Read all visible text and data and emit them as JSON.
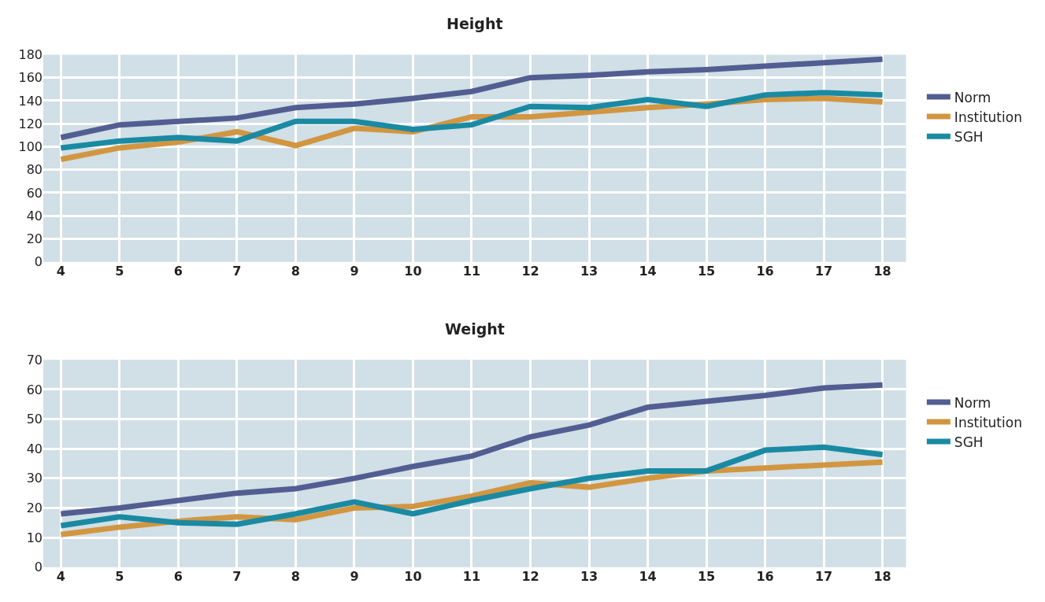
{
  "chart_data": [
    {
      "type": "line",
      "title": "Height",
      "categories": [
        "4",
        "5",
        "6",
        "7",
        "8",
        "9",
        "10",
        "11",
        "12",
        "13",
        "14",
        "15",
        "16",
        "17",
        "18"
      ],
      "ylim": [
        0,
        180
      ],
      "yticks": [
        0,
        20,
        40,
        60,
        80,
        100,
        120,
        140,
        160,
        180
      ],
      "grid": true,
      "legend": "right",
      "marker": "none",
      "line_style": "solid",
      "series": [
        {
          "name": "Norm",
          "color": "#525e92",
          "values": [
            108,
            119,
            122,
            125,
            134,
            137,
            142,
            148,
            160,
            162,
            165,
            167,
            170,
            173,
            176
          ]
        },
        {
          "name": "Institution",
          "color": "#d29641",
          "values": [
            89,
            99,
            104,
            113,
            101,
            116,
            113,
            126,
            126,
            130,
            134,
            137,
            141,
            142,
            139
          ]
        },
        {
          "name": "SGH",
          "color": "#1a8aa3",
          "values": [
            99,
            105,
            108,
            105,
            122,
            122,
            115,
            119,
            135,
            134,
            141,
            135,
            145,
            147,
            145
          ]
        }
      ]
    },
    {
      "type": "line",
      "title": "Weight",
      "categories": [
        "4",
        "5",
        "6",
        "7",
        "8",
        "9",
        "10",
        "11",
        "12",
        "13",
        "14",
        "15",
        "16",
        "17",
        "18"
      ],
      "ylim": [
        0,
        70
      ],
      "yticks": [
        0,
        10,
        20,
        30,
        40,
        50,
        60,
        70
      ],
      "grid": true,
      "legend": "right",
      "marker": "none",
      "line_style": "solid",
      "series": [
        {
          "name": "Norm",
          "color": "#525e92",
          "values": [
            18,
            20,
            22.5,
            25,
            26.5,
            30,
            34,
            37.5,
            44,
            48,
            54,
            56,
            58,
            60.5,
            61.5
          ]
        },
        {
          "name": "Institution",
          "color": "#d29641",
          "values": [
            11,
            13.5,
            15.5,
            17,
            16,
            20,
            20.5,
            24,
            28.5,
            27,
            30,
            32.5,
            33.5,
            34.5,
            35.5
          ]
        },
        {
          "name": "SGH",
          "color": "#1a8aa3",
          "values": [
            14,
            17,
            15,
            14.5,
            18,
            22,
            18,
            22.5,
            26.5,
            30,
            32.5,
            32.5,
            39.5,
            40.5,
            38
          ]
        }
      ]
    }
  ]
}
